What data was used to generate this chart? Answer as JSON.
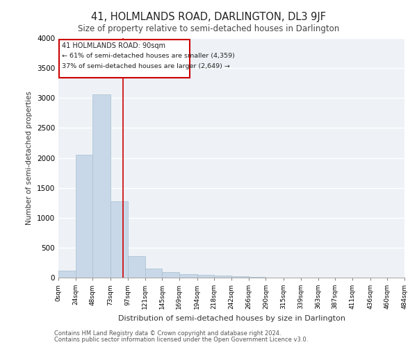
{
  "title": "41, HOLMLANDS ROAD, DARLINGTON, DL3 9JF",
  "subtitle": "Size of property relative to semi-detached houses in Darlington",
  "xlabel": "Distribution of semi-detached houses by size in Darlington",
  "ylabel": "Number of semi-detached properties",
  "footer_line1": "Contains HM Land Registry data © Crown copyright and database right 2024.",
  "footer_line2": "Contains public sector information licensed under the Open Government Licence v3.0.",
  "property_size": 90,
  "annotation_title": "41 HOLMLANDS ROAD: 90sqm",
  "annotation_line1": "← 61% of semi-detached houses are smaller (4,359)",
  "annotation_line2": "37% of semi-detached houses are larger (2,649) →",
  "bar_color": "#c8d8e8",
  "bar_edge_color": "#a8bece",
  "annotation_box_color": "#cc0000",
  "vline_color": "#cc0000",
  "background_color": "#eef2f7",
  "grid_color": "#ffffff",
  "bin_edges": [
    0,
    24,
    48,
    73,
    97,
    121,
    145,
    169,
    194,
    218,
    242,
    266,
    290,
    315,
    339,
    363,
    387,
    411,
    436,
    460,
    484
  ],
  "bin_labels": [
    "0sqm",
    "24sqm",
    "48sqm",
    "73sqm",
    "97sqm",
    "121sqm",
    "145sqm",
    "169sqm",
    "194sqm",
    "218sqm",
    "242sqm",
    "266sqm",
    "290sqm",
    "315sqm",
    "339sqm",
    "363sqm",
    "387sqm",
    "411sqm",
    "436sqm",
    "460sqm",
    "484sqm"
  ],
  "bar_heights": [
    120,
    2050,
    3060,
    1270,
    360,
    155,
    90,
    60,
    45,
    30,
    20,
    10,
    5,
    5,
    3,
    2,
    2,
    2,
    2,
    2
  ],
  "ylim": [
    0,
    4000
  ],
  "yticks": [
    0,
    500,
    1000,
    1500,
    2000,
    2500,
    3000,
    3500,
    4000
  ]
}
